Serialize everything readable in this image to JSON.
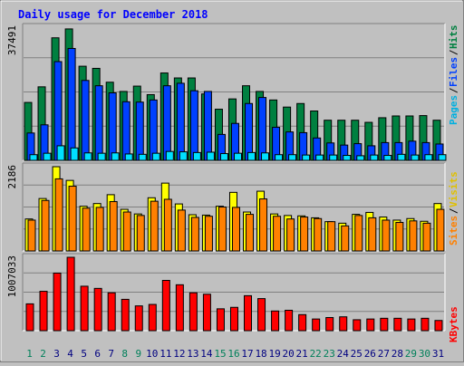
{
  "chart_data": [
    {
      "type": "bar",
      "title": "Daily usage for December 2018",
      "categories": [
        "1",
        "2",
        "3",
        "4",
        "5",
        "6",
        "7",
        "8",
        "9",
        "10",
        "11",
        "12",
        "13",
        "14",
        "15",
        "16",
        "17",
        "18",
        "19",
        "20",
        "21",
        "22",
        "23",
        "24",
        "25",
        "26",
        "27",
        "28",
        "29",
        "30",
        "31"
      ],
      "weekend_days": [
        "1",
        "2",
        "8",
        "9",
        "15",
        "16",
        "22",
        "23",
        "29",
        "30"
      ],
      "ymax_label": "37491",
      "ylim": [
        0,
        37491
      ],
      "grid": true,
      "legend": "right, vertical",
      "legend_items": [
        "Pages",
        "Files",
        "Hits"
      ],
      "series": [
        {
          "name": "Hits",
          "color": "#008040",
          "values": [
            16300,
            20700,
            34500,
            37000,
            26500,
            25900,
            22000,
            19400,
            20900,
            18500,
            24600,
            23200,
            23200,
            18700,
            14400,
            17300,
            21000,
            19400,
            17000,
            15000,
            16000,
            13900,
            11300,
            11300,
            11300,
            10700,
            12000,
            12500,
            12500,
            12600,
            11300
          ]
        },
        {
          "name": "Files",
          "color": "#0040ff",
          "values": [
            7700,
            10000,
            27800,
            31500,
            22500,
            21000,
            19000,
            16500,
            16400,
            17000,
            21000,
            21700,
            19600,
            19400,
            7300,
            10400,
            16000,
            17700,
            9300,
            8000,
            7800,
            6300,
            4900,
            4300,
            4700,
            4100,
            5000,
            5000,
            5400,
            5000,
            4600
          ]
        },
        {
          "name": "Pages",
          "color": "#00e0ff",
          "values": [
            1600,
            2000,
            4100,
            3500,
            2100,
            2000,
            2100,
            1800,
            1700,
            2000,
            2500,
            2400,
            2200,
            2300,
            1900,
            2000,
            2200,
            2100,
            1600,
            1600,
            1500,
            1500,
            1500,
            1400,
            1300,
            1500,
            1400,
            1700,
            1500,
            1600,
            1600
          ]
        }
      ]
    },
    {
      "type": "bar",
      "categories": [
        "1",
        "2",
        "3",
        "4",
        "5",
        "6",
        "7",
        "8",
        "9",
        "10",
        "11",
        "12",
        "13",
        "14",
        "15",
        "16",
        "17",
        "18",
        "19",
        "20",
        "21",
        "22",
        "23",
        "24",
        "25",
        "26",
        "27",
        "28",
        "29",
        "30",
        "31"
      ],
      "ymax_label": "2186",
      "ylim": [
        0,
        2186
      ],
      "grid": true,
      "legend": "right, vertical",
      "legend_items": [
        "Sites",
        "Visits"
      ],
      "series": [
        {
          "name": "Visits",
          "color": "#ffff00",
          "values": [
            830,
            1360,
            2186,
            1830,
            1160,
            1230,
            1460,
            1080,
            960,
            1380,
            1760,
            1220,
            940,
            930,
            1160,
            1520,
            1010,
            1550,
            960,
            920,
            910,
            860,
            760,
            720,
            950,
            1000,
            880,
            800,
            840,
            770,
            1230
          ]
        },
        {
          "name": "Sites",
          "color": "#ff8000",
          "values": [
            800,
            1310,
            1870,
            1680,
            1110,
            1130,
            1280,
            1010,
            920,
            1290,
            1340,
            1060,
            870,
            900,
            1140,
            1130,
            950,
            1350,
            900,
            830,
            880,
            840,
            760,
            650,
            920,
            860,
            800,
            740,
            780,
            720,
            1080
          ]
        }
      ]
    },
    {
      "type": "bar",
      "categories": [
        "1",
        "2",
        "3",
        "4",
        "5",
        "6",
        "7",
        "8",
        "9",
        "10",
        "11",
        "12",
        "13",
        "14",
        "15",
        "16",
        "17",
        "18",
        "19",
        "20",
        "21",
        "22",
        "23",
        "24",
        "25",
        "26",
        "27",
        "28",
        "29",
        "30",
        "31"
      ],
      "ymax_label": "1007033",
      "ylim": [
        0,
        1007033
      ],
      "grid": true,
      "legend": "right, vertical",
      "legend_items": [
        "KBytes"
      ],
      "series": [
        {
          "name": "KBytes",
          "color": "#ff0000",
          "values": [
            368000,
            540000,
            790000,
            1007033,
            610000,
            580000,
            520000,
            430000,
            340000,
            360000,
            690000,
            630000,
            520000,
            500000,
            300000,
            320000,
            480000,
            440000,
            270000,
            280000,
            220000,
            160000,
            180000,
            190000,
            150000,
            160000,
            170000,
            170000,
            160000,
            170000,
            140000
          ]
        }
      ]
    }
  ]
}
